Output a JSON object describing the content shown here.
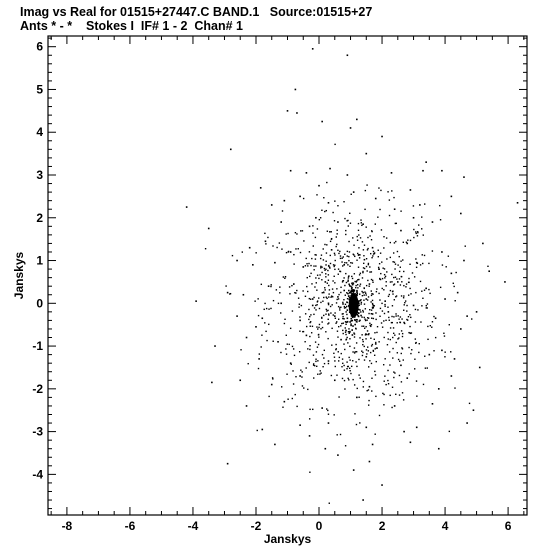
{
  "header": {
    "line1": "Imag vs Real for 01515+27447.C BAND.1   Source:01515+27",
    "line2": "Ants * - *    Stokes I  IF# 1 - 2  Chan# 1"
  },
  "chart_data": {
    "type": "scatter",
    "xlabel": "Janskys",
    "ylabel": "Janskys",
    "xlim": [
      -8.6,
      6.6
    ],
    "ylim": [
      -4.95,
      6.25
    ],
    "x_ticks": [
      -8,
      -6,
      -4,
      -2,
      0,
      2,
      4,
      6
    ],
    "y_ticks": [
      -4,
      -3,
      -2,
      -1,
      0,
      1,
      2,
      3,
      4,
      5,
      6
    ],
    "grid": false,
    "marker_color": "#000000",
    "series": [
      {
        "points": [
          [
            -0.2,
            5.95
          ],
          [
            0.9,
            5.8
          ],
          [
            -0.75,
            5.0
          ],
          [
            -1.0,
            4.5
          ],
          [
            -0.7,
            4.45
          ],
          [
            0.1,
            4.25
          ],
          [
            1.2,
            4.3
          ],
          [
            1.0,
            4.1
          ],
          [
            2.0,
            3.9
          ],
          [
            -2.8,
            3.6
          ],
          [
            1.5,
            3.5
          ],
          [
            -0.9,
            3.1
          ],
          [
            -0.4,
            3.05
          ],
          [
            0.35,
            3.15
          ],
          [
            0.9,
            3.0
          ],
          [
            2.3,
            3.05
          ],
          [
            3.3,
            3.1
          ],
          [
            3.9,
            3.1
          ],
          [
            4.6,
            2.95
          ],
          [
            -1.85,
            2.7
          ],
          [
            -4.2,
            2.25
          ],
          [
            -3.5,
            1.75
          ],
          [
            -1.5,
            2.3
          ],
          [
            -0.6,
            2.5
          ],
          [
            0.3,
            2.35
          ],
          [
            1.8,
            2.45
          ],
          [
            2.4,
            2.2
          ],
          [
            3.2,
            2.3
          ],
          [
            4.2,
            2.5
          ],
          [
            4.5,
            2.1
          ],
          [
            6.3,
            2.35
          ],
          [
            -1.2,
            1.9
          ],
          [
            -0.3,
            1.8
          ],
          [
            0.6,
            1.9
          ],
          [
            1.4,
            1.85
          ],
          [
            2.6,
            1.7
          ],
          [
            3.6,
            1.9
          ],
          [
            -2.2,
            1.3
          ],
          [
            -1.7,
            1.45
          ],
          [
            -0.9,
            1.2
          ],
          [
            0.4,
            1.25
          ],
          [
            1.7,
            1.3
          ],
          [
            2.8,
            1.4
          ],
          [
            3.9,
            1.2
          ],
          [
            5.2,
            1.4
          ],
          [
            -2.1,
            0.9
          ],
          [
            -1.4,
            0.95
          ],
          [
            -0.5,
            0.85
          ],
          [
            0.8,
            0.9
          ],
          [
            1.9,
            0.8
          ],
          [
            3.1,
            0.95
          ],
          [
            4.2,
            0.7
          ],
          [
            5.4,
            0.75
          ],
          [
            -2.9,
            0.25
          ],
          [
            -2.4,
            0.2
          ],
          [
            -1.6,
            0.4
          ],
          [
            -0.8,
            0.45
          ],
          [
            0.2,
            0.5
          ],
          [
            1.6,
            0.45
          ],
          [
            2.5,
            0.5
          ],
          [
            3.4,
            0.35
          ],
          [
            4.4,
            0.25
          ],
          [
            5.9,
            0.5
          ],
          [
            -3.9,
            0.05
          ],
          [
            -1.2,
            0.0
          ],
          [
            -0.2,
            0.1
          ],
          [
            2.1,
            0.05
          ],
          [
            3.0,
            -0.05
          ],
          [
            4.0,
            0.1
          ],
          [
            4.7,
            -0.3
          ],
          [
            5.0,
            -0.2
          ],
          [
            -2.6,
            -0.3
          ],
          [
            -1.8,
            -0.35
          ],
          [
            -0.6,
            -0.4
          ],
          [
            0.5,
            -0.3
          ],
          [
            1.7,
            -0.25
          ],
          [
            2.7,
            -0.45
          ],
          [
            3.7,
            -0.35
          ],
          [
            -3.3,
            -1.0
          ],
          [
            -2.3,
            -0.8
          ],
          [
            -1.3,
            -0.9
          ],
          [
            -0.4,
            -0.75
          ],
          [
            0.7,
            -0.85
          ],
          [
            1.8,
            -0.95
          ],
          [
            2.9,
            -0.7
          ],
          [
            3.9,
            -1.1
          ],
          [
            5.1,
            -1.5
          ],
          [
            -1.9,
            -1.3
          ],
          [
            -0.9,
            -1.4
          ],
          [
            0.3,
            -1.35
          ],
          [
            1.5,
            -1.25
          ],
          [
            2.6,
            -1.45
          ],
          [
            3.5,
            -1.2
          ],
          [
            4.3,
            -1.3
          ],
          [
            -3.4,
            -1.85
          ],
          [
            -2.5,
            -1.8
          ],
          [
            -1.5,
            -1.9
          ],
          [
            -0.6,
            -1.7
          ],
          [
            0.5,
            -1.8
          ],
          [
            1.6,
            -1.95
          ],
          [
            2.8,
            -1.75
          ],
          [
            3.8,
            -2.0
          ],
          [
            4.2,
            -1.7
          ],
          [
            -2.3,
            -2.4
          ],
          [
            -1.1,
            -2.3
          ],
          [
            0.1,
            -2.45
          ],
          [
            1.2,
            -2.2
          ],
          [
            2.4,
            -2.4
          ],
          [
            3.6,
            -2.35
          ],
          [
            4.9,
            -2.5
          ],
          [
            -1.8,
            -2.95
          ],
          [
            -0.6,
            -2.85
          ],
          [
            0.3,
            -2.8
          ],
          [
            1.5,
            -2.9
          ],
          [
            2.7,
            -3.0
          ],
          [
            3.1,
            -2.9
          ],
          [
            4.7,
            -2.8
          ],
          [
            -1.4,
            -3.3
          ],
          [
            0.2,
            -3.4
          ],
          [
            1.7,
            -3.3
          ],
          [
            2.9,
            -3.25
          ],
          [
            3.8,
            -3.4
          ],
          [
            1.6,
            -3.7
          ],
          [
            -2.9,
            -3.75
          ],
          [
            1.1,
            -3.9
          ],
          [
            2.0,
            -4.25
          ],
          [
            1.4,
            -4.6
          ],
          [
            0.6,
            -3.55
          ],
          [
            -0.3,
            -3.1
          ],
          [
            3.4,
            3.3
          ],
          [
            0.0,
            2.75
          ],
          [
            -1.1,
            2.4
          ],
          [
            2.9,
            2.65
          ],
          [
            1.1,
            2.6
          ],
          [
            -0.1,
            2.0
          ],
          [
            3.0,
            2.0
          ],
          [
            -2.6,
            1.0
          ],
          [
            4.6,
            1.0
          ],
          [
            -2.0,
            -0.55
          ],
          [
            4.5,
            -0.6
          ],
          [
            -0.2,
            -0.05
          ],
          [
            0.3,
            0.0
          ],
          [
            1.7,
            -0.1
          ],
          [
            2.2,
            -0.2
          ],
          [
            0.6,
            0.15
          ],
          [
            1.4,
            0.25
          ],
          [
            0.9,
            -0.35
          ],
          [
            1.3,
            -0.4
          ],
          [
            0.8,
            0.3
          ],
          [
            1.5,
            0.1
          ]
        ]
      }
    ]
  }
}
